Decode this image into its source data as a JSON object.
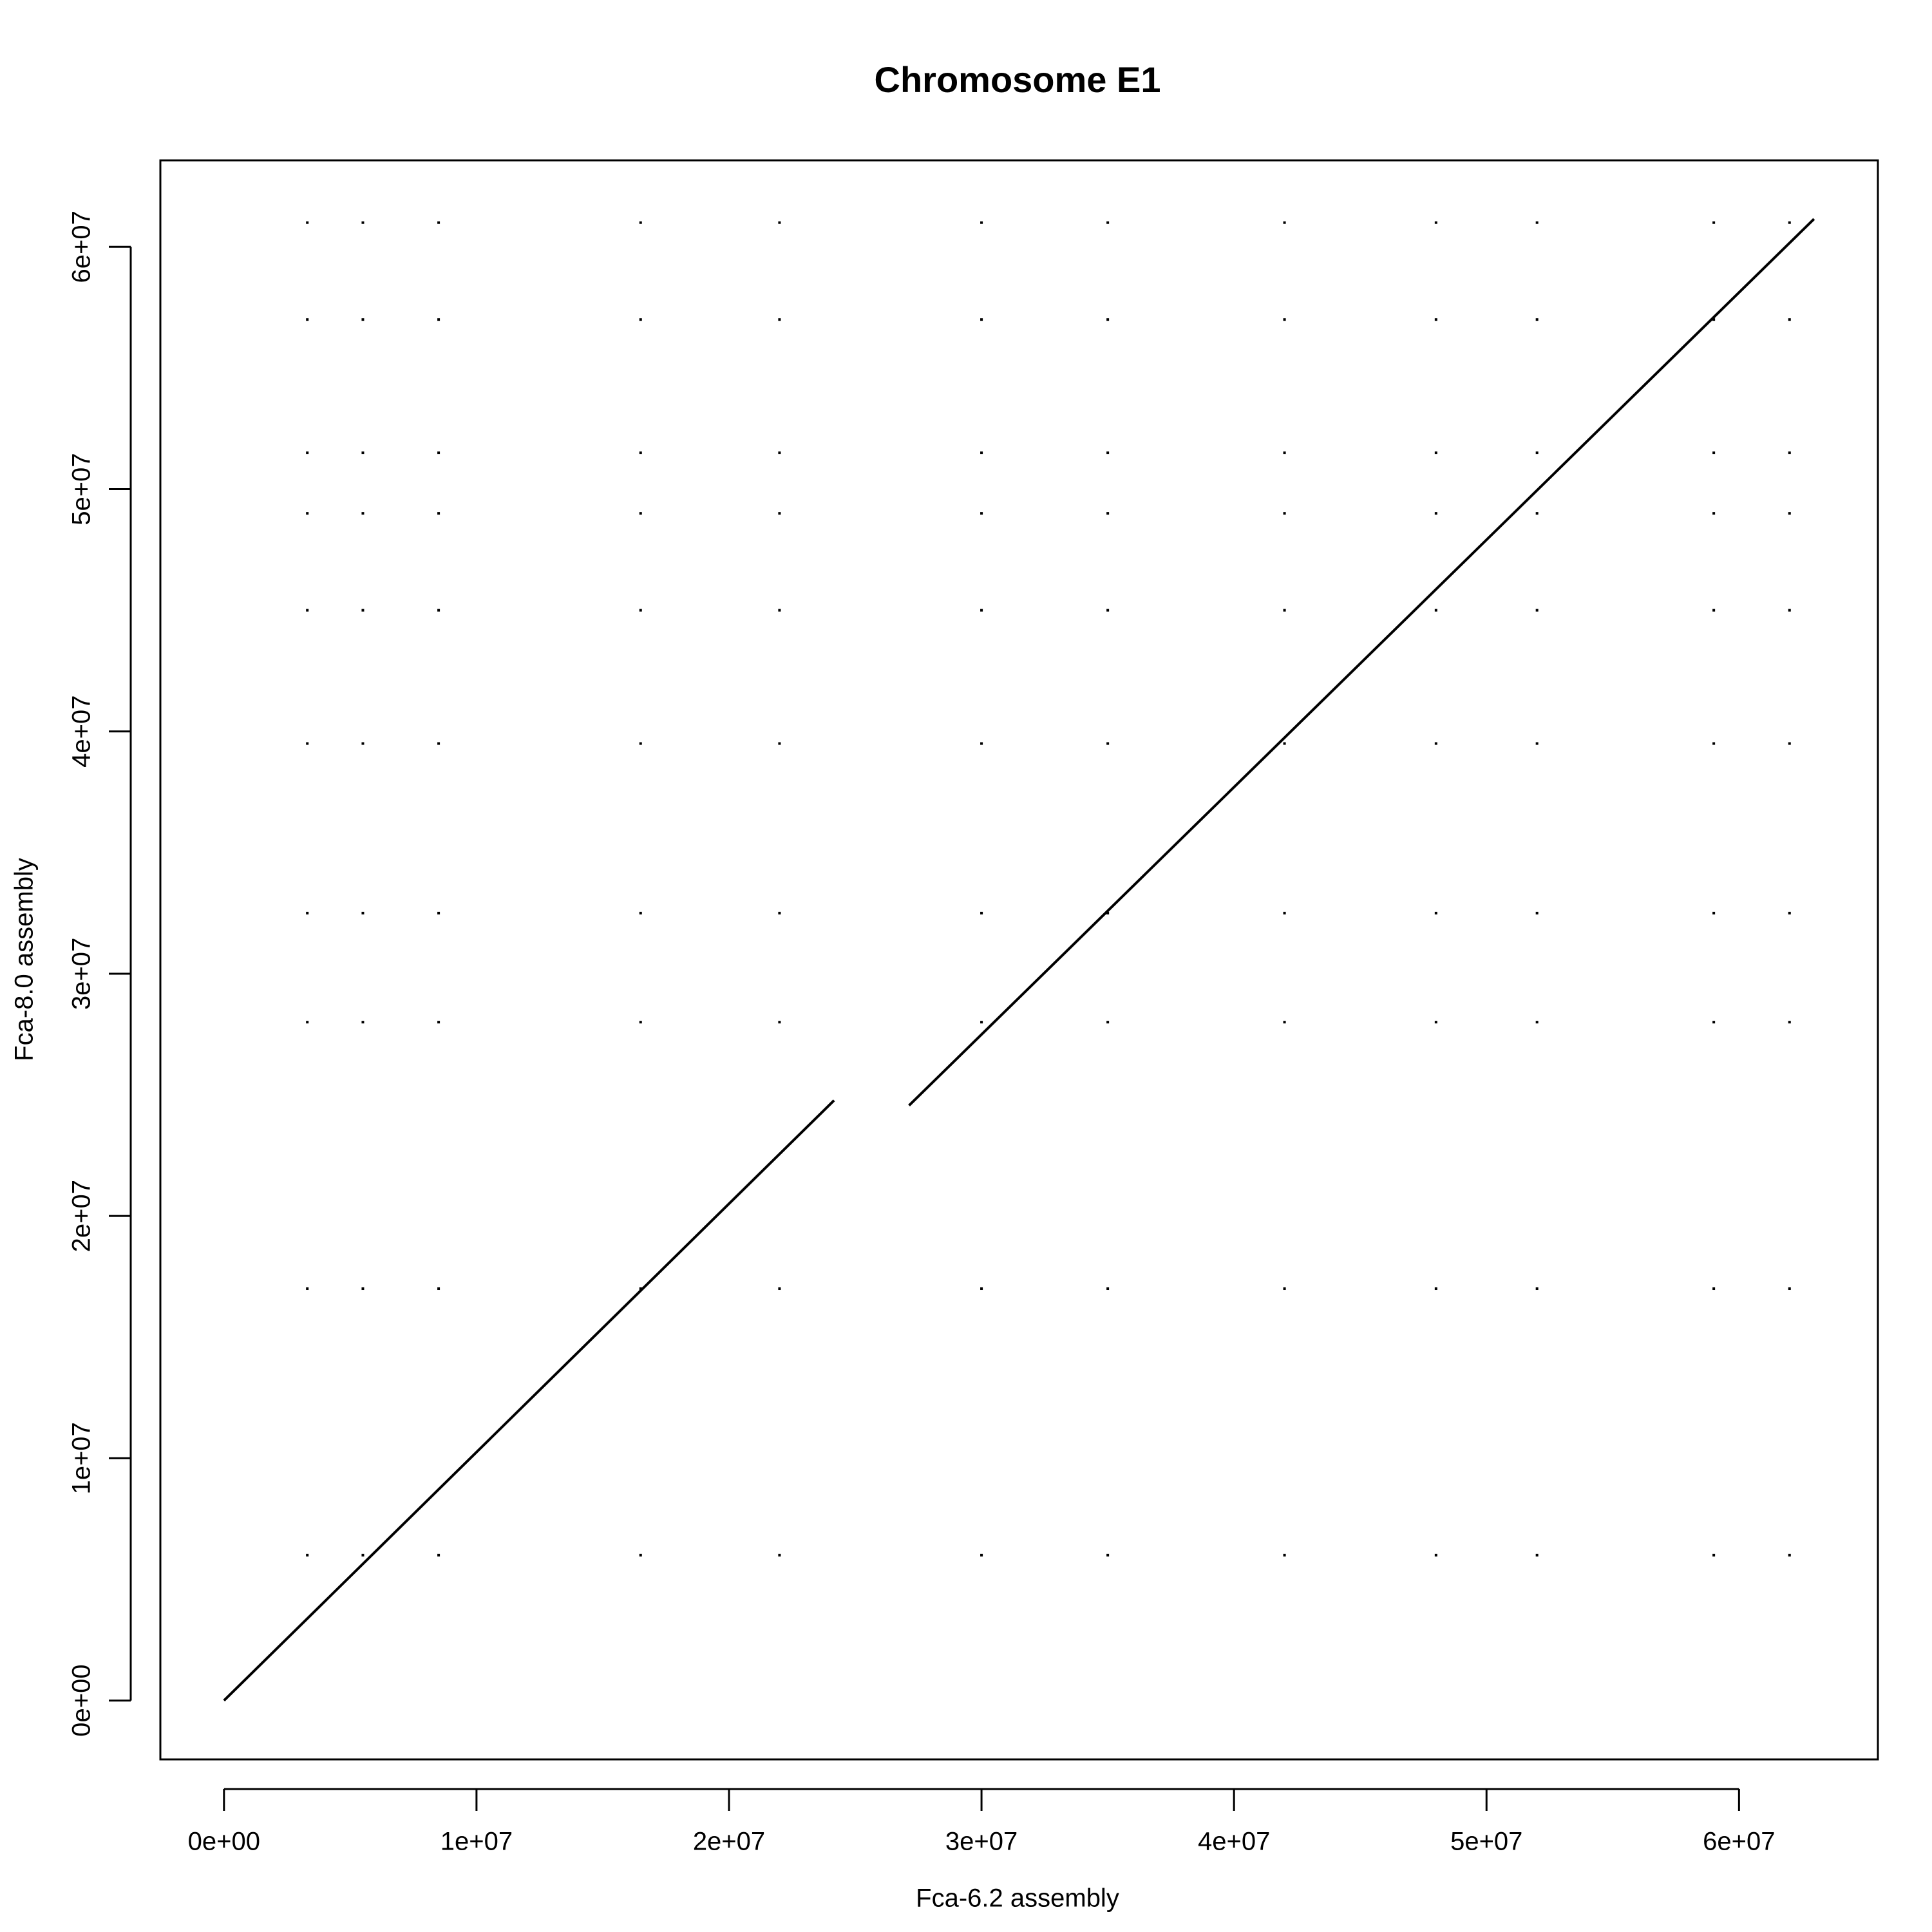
{
  "chart_data": {
    "type": "scatter",
    "title": "Chromosome E1",
    "x_label": "Fca-6.2 assembly",
    "y_label": "Fca-8.0 assembly",
    "color": "#000000",
    "xlim": [
      -2520000,
      65500000
    ],
    "ylim": [
      -2430000,
      63570000
    ],
    "xticks": [
      {
        "value": 0,
        "label": "0e+00"
      },
      {
        "value": 10000000,
        "label": "1e+07"
      },
      {
        "value": 20000000,
        "label": "2e+07"
      },
      {
        "value": 30000000,
        "label": "3e+07"
      },
      {
        "value": 40000000,
        "label": "4e+07"
      },
      {
        "value": 50000000,
        "label": "5e+07"
      },
      {
        "value": 60000000,
        "label": "6e+07"
      }
    ],
    "yticks": [
      {
        "value": 0,
        "label": "0e+00"
      },
      {
        "value": 10000000,
        "label": "1e+07"
      },
      {
        "value": 20000000,
        "label": "2e+07"
      },
      {
        "value": 30000000,
        "label": "3e+07"
      },
      {
        "value": 40000000,
        "label": "4e+07"
      },
      {
        "value": 50000000,
        "label": "5e+07"
      },
      {
        "value": 60000000,
        "label": "6e+07"
      }
    ],
    "lines": [
      {
        "x": [
          0,
          24160000
        ],
        "values": [
          0,
          24770000
        ]
      },
      {
        "x": [
          27130000,
          62970000
        ],
        "values": [
          24560000,
          61150000
        ]
      }
    ],
    "x": [
      3300000,
      5500000,
      8500000,
      16500000,
      22000000,
      30000000,
      35000000,
      42000000,
      48000000,
      52000000,
      59000000,
      62000000,
      3300000,
      5500000,
      8500000,
      16500000,
      22000000,
      30000000,
      35000000,
      42000000,
      48000000,
      52000000,
      59000000,
      62000000,
      3300000,
      5500000,
      8500000,
      16500000,
      22000000,
      30000000,
      35000000,
      42000000,
      48000000,
      52000000,
      59000000,
      62000000,
      3300000,
      5500000,
      8500000,
      16500000,
      22000000,
      30000000,
      35000000,
      42000000,
      48000000,
      52000000,
      59000000,
      62000000,
      3300000,
      5500000,
      8500000,
      16500000,
      22000000,
      30000000,
      35000000,
      42000000,
      48000000,
      52000000,
      59000000,
      62000000,
      3300000,
      5500000,
      8500000,
      16500000,
      22000000,
      30000000,
      35000000,
      42000000,
      48000000,
      52000000,
      59000000,
      62000000,
      3300000,
      5500000,
      8500000,
      16500000,
      22000000,
      30000000,
      35000000,
      42000000,
      48000000,
      52000000,
      59000000,
      62000000,
      3300000,
      5500000,
      8500000,
      16500000,
      22000000,
      30000000,
      35000000,
      42000000,
      48000000,
      52000000,
      59000000,
      62000000,
      3300000,
      5500000,
      8500000,
      16500000,
      22000000,
      30000000,
      35000000,
      42000000,
      48000000,
      52000000,
      59000000,
      62000000,
      3300000,
      5500000,
      8500000,
      16500000,
      22000000,
      30000000,
      35000000,
      42000000,
      48000000,
      52000000,
      59000000,
      62000000
    ],
    "values": [
      61000000,
      61000000,
      61000000,
      61000000,
      61000000,
      61000000,
      61000000,
      61000000,
      61000000,
      61000000,
      61000000,
      61000000,
      57000000,
      57000000,
      57000000,
      57000000,
      57000000,
      57000000,
      57000000,
      57000000,
      57000000,
      57000000,
      57000000,
      57000000,
      51500000,
      51500000,
      51500000,
      51500000,
      51500000,
      51500000,
      51500000,
      51500000,
      51500000,
      51500000,
      51500000,
      51500000,
      49000000,
      49000000,
      49000000,
      49000000,
      49000000,
      49000000,
      49000000,
      49000000,
      49000000,
      49000000,
      49000000,
      49000000,
      45000000,
      45000000,
      45000000,
      45000000,
      45000000,
      45000000,
      45000000,
      45000000,
      45000000,
      45000000,
      45000000,
      45000000,
      39500000,
      39500000,
      39500000,
      39500000,
      39500000,
      39500000,
      39500000,
      39500000,
      39500000,
      39500000,
      39500000,
      39500000,
      32500000,
      32500000,
      32500000,
      32500000,
      32500000,
      32500000,
      32500000,
      32500000,
      32500000,
      32500000,
      32500000,
      32500000,
      28000000,
      28000000,
      28000000,
      28000000,
      28000000,
      28000000,
      28000000,
      28000000,
      28000000,
      28000000,
      28000000,
      28000000,
      17000000,
      17000000,
      17000000,
      17000000,
      17000000,
      17000000,
      17000000,
      17000000,
      17000000,
      17000000,
      17000000,
      17000000,
      6000000,
      6000000,
      6000000,
      6000000,
      6000000,
      6000000,
      6000000,
      6000000,
      6000000,
      6000000,
      6000000,
      6000000
    ]
  }
}
